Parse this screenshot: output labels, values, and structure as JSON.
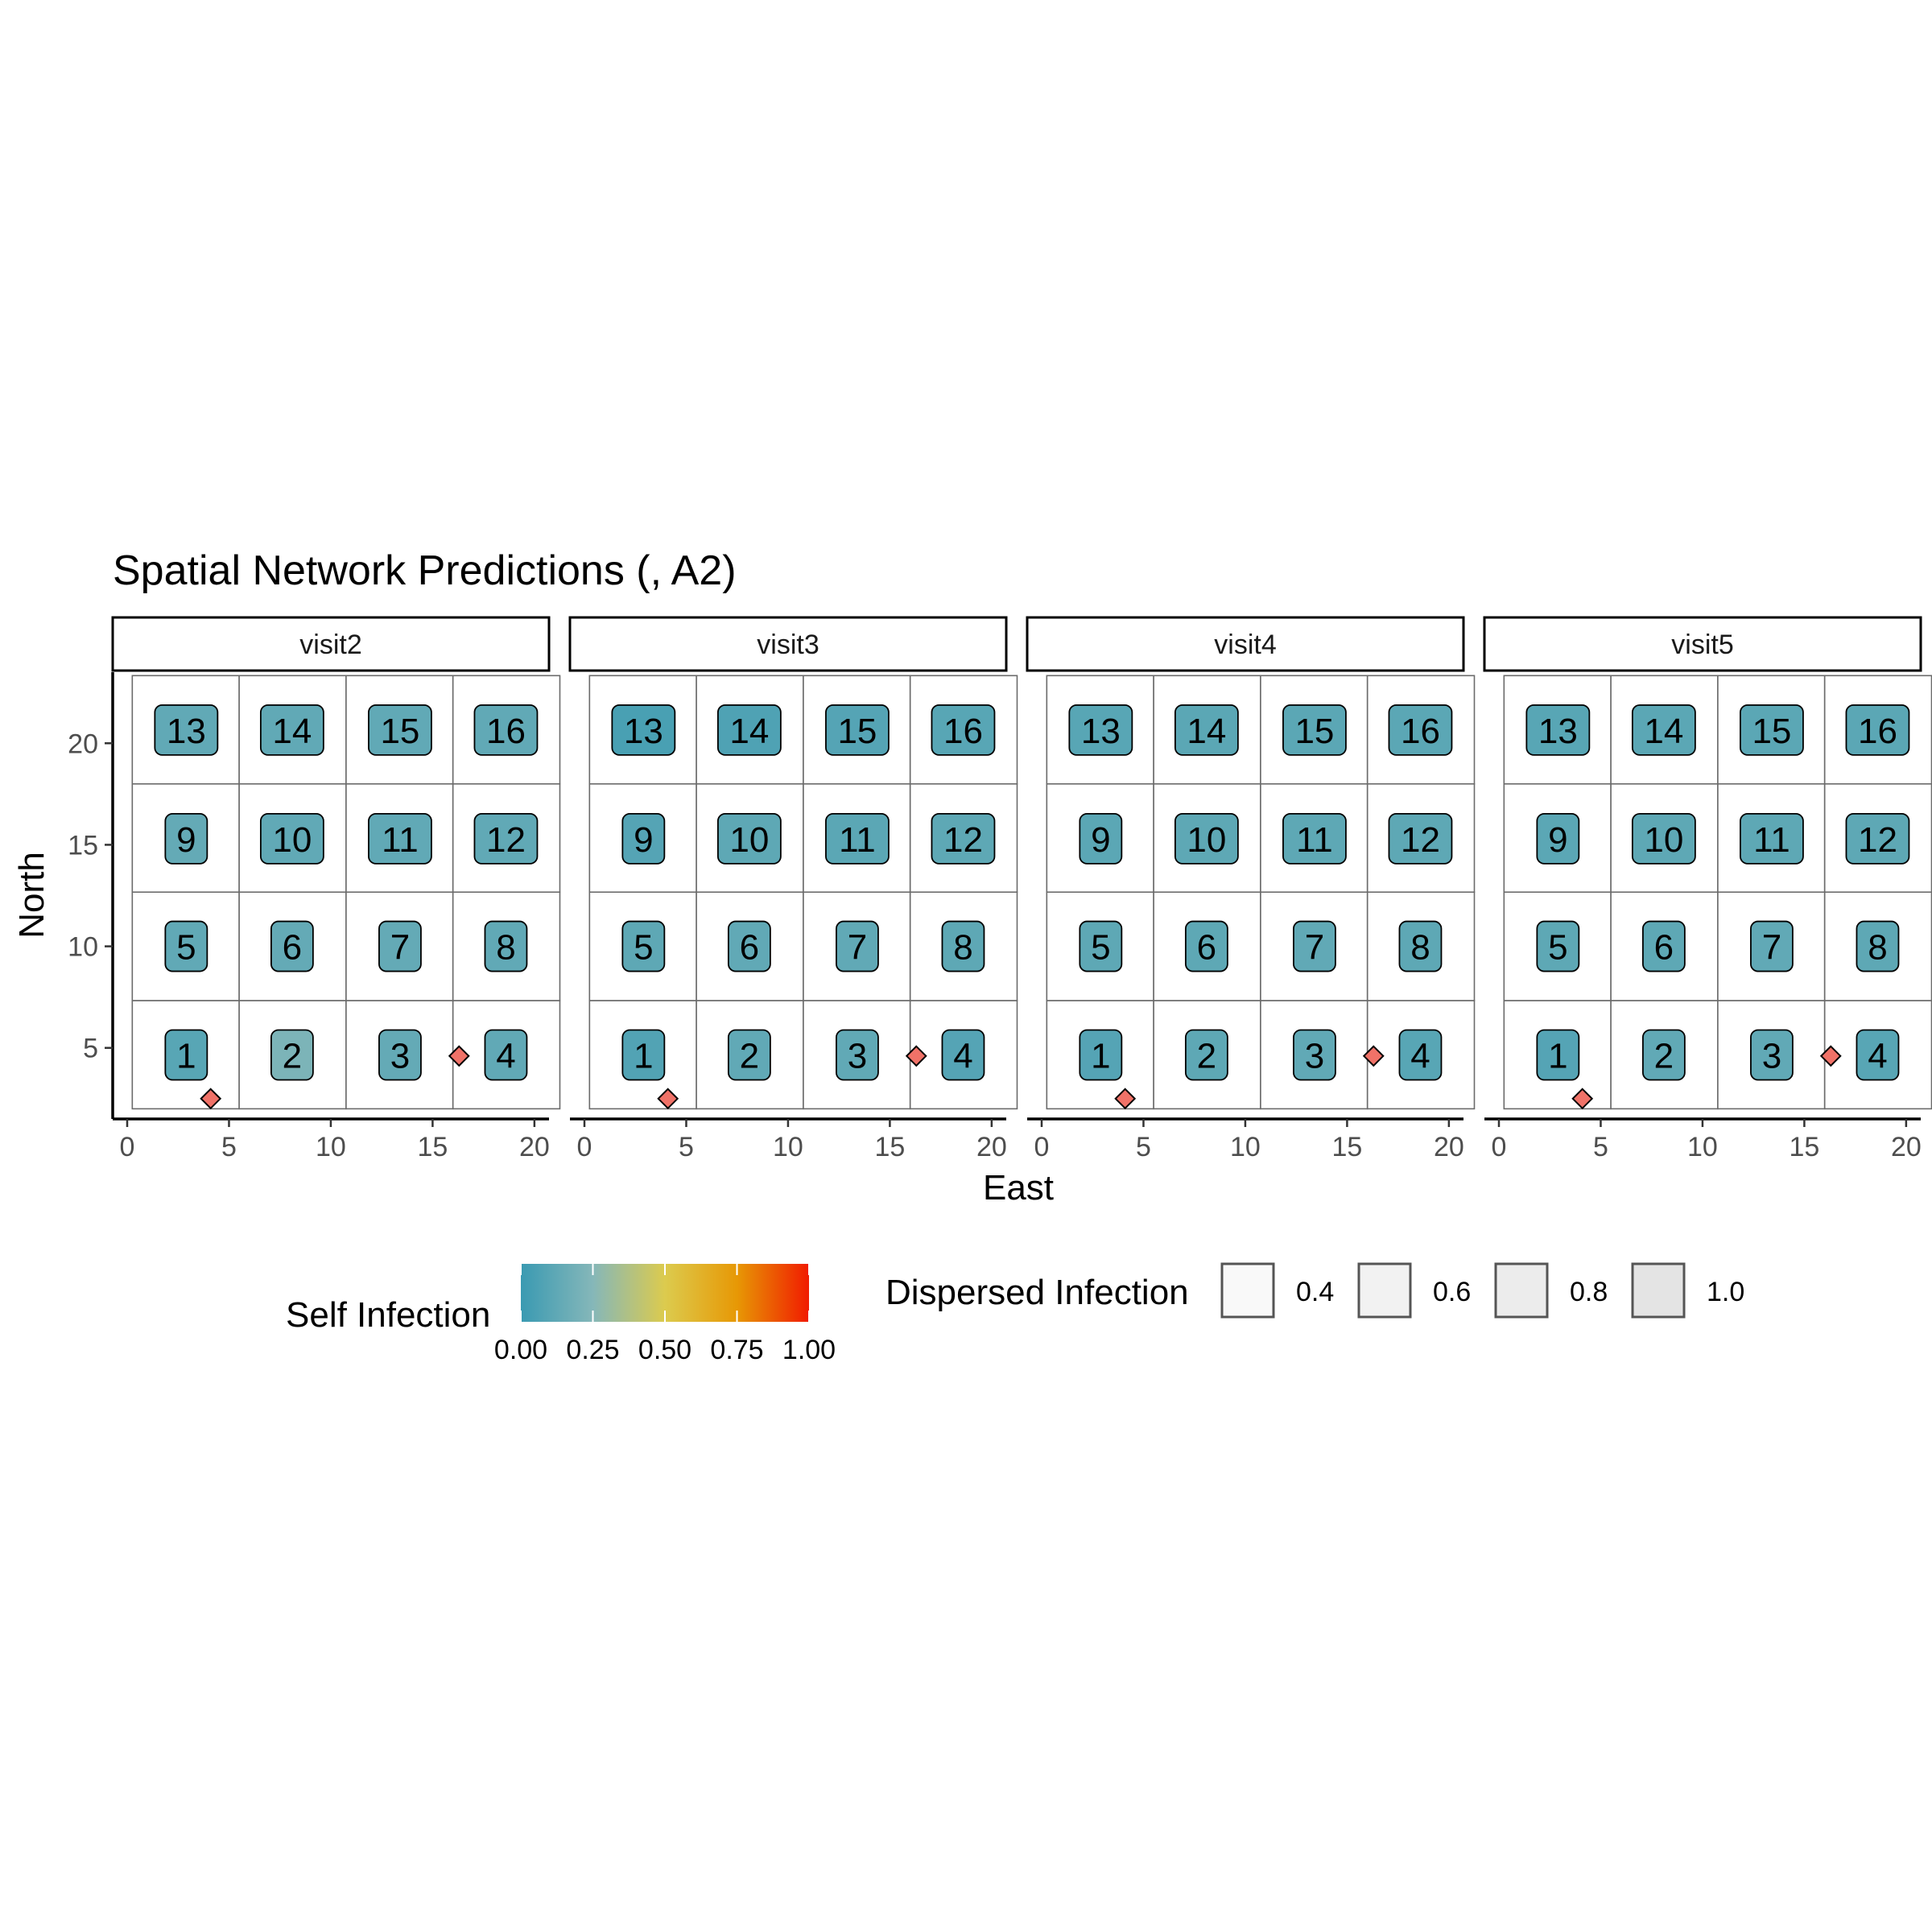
{
  "chart_data": {
    "type": "heatmap",
    "title": "Spatial Network Predictions (, A2)",
    "xlabel": "East",
    "ylabel": "North",
    "xlim": [
      0,
      21
    ],
    "ylim": [
      1.5,
      23.5
    ],
    "x_ticks": [
      0,
      5,
      10,
      15,
      20
    ],
    "y_ticks": [
      5,
      10,
      15,
      20
    ],
    "grid_cells": {
      "x_edges": [
        0.25,
        5.5,
        10.75,
        16,
        21.25
      ],
      "y_edges": [
        2,
        7.33,
        12.67,
        18,
        23.33
      ]
    },
    "panels": [
      {
        "label": "visit2",
        "values": [
          0.1,
          0.22,
          0.14,
          0.13,
          0.13,
          0.14,
          0.14,
          0.13,
          0.14,
          0.13,
          0.13,
          0.13,
          0.13,
          0.13,
          0.13,
          0.13
        ]
      },
      {
        "label": "visit3",
        "values": [
          0.08,
          0.13,
          0.13,
          0.09,
          0.12,
          0.13,
          0.13,
          0.12,
          0.09,
          0.12,
          0.11,
          0.12,
          0.05,
          0.07,
          0.09,
          0.1
        ]
      },
      {
        "label": "visit4",
        "values": [
          0.09,
          0.12,
          0.13,
          0.1,
          0.12,
          0.12,
          0.13,
          0.12,
          0.11,
          0.12,
          0.12,
          0.12,
          0.1,
          0.11,
          0.11,
          0.11
        ]
      },
      {
        "label": "visit5",
        "values": [
          0.09,
          0.13,
          0.13,
          0.1,
          0.12,
          0.12,
          0.13,
          0.12,
          0.11,
          0.12,
          0.12,
          0.12,
          0.1,
          0.11,
          0.11,
          0.11
        ]
      }
    ],
    "nodes": [
      {
        "id": "1",
        "x": 2.9,
        "y": 4.65
      },
      {
        "id": "2",
        "x": 8.1,
        "y": 4.65
      },
      {
        "id": "3",
        "x": 13.4,
        "y": 4.65
      },
      {
        "id": "4",
        "x": 18.6,
        "y": 4.65
      },
      {
        "id": "5",
        "x": 2.9,
        "y": 10.0
      },
      {
        "id": "6",
        "x": 8.1,
        "y": 10.0
      },
      {
        "id": "7",
        "x": 13.4,
        "y": 10.0
      },
      {
        "id": "8",
        "x": 18.6,
        "y": 10.0
      },
      {
        "id": "9",
        "x": 2.9,
        "y": 15.3
      },
      {
        "id": "10",
        "x": 8.1,
        "y": 15.3
      },
      {
        "id": "11",
        "x": 13.4,
        "y": 15.3
      },
      {
        "id": "12",
        "x": 18.6,
        "y": 15.3
      },
      {
        "id": "13",
        "x": 2.9,
        "y": 20.65
      },
      {
        "id": "14",
        "x": 8.1,
        "y": 20.65
      },
      {
        "id": "15",
        "x": 13.4,
        "y": 20.65
      },
      {
        "id": "16",
        "x": 18.6,
        "y": 20.65
      }
    ],
    "sources": [
      {
        "x": 4.1,
        "y": 2.5
      },
      {
        "x": 16.3,
        "y": 4.6
      }
    ],
    "source_color": "#F07268",
    "legend_position": "bottom",
    "legend": {
      "color_title": "Self Infection",
      "color_ticks": [
        "0.00",
        "0.25",
        "0.50",
        "0.75",
        "1.00"
      ],
      "color_stops": [
        "#3A9AB2",
        "#85B7B9",
        "#DCCB4E",
        "#E79805",
        "#F11B00"
      ],
      "fill_title": "Dispersed Infection",
      "fill_entries": [
        {
          "label": "0.4",
          "fill": "#F9F9F9"
        },
        {
          "label": "0.6",
          "fill": "#F2F2F2"
        },
        {
          "label": "0.8",
          "fill": "#ECECEC"
        },
        {
          "label": "1.0",
          "fill": "#E4E4E4"
        }
      ]
    }
  }
}
